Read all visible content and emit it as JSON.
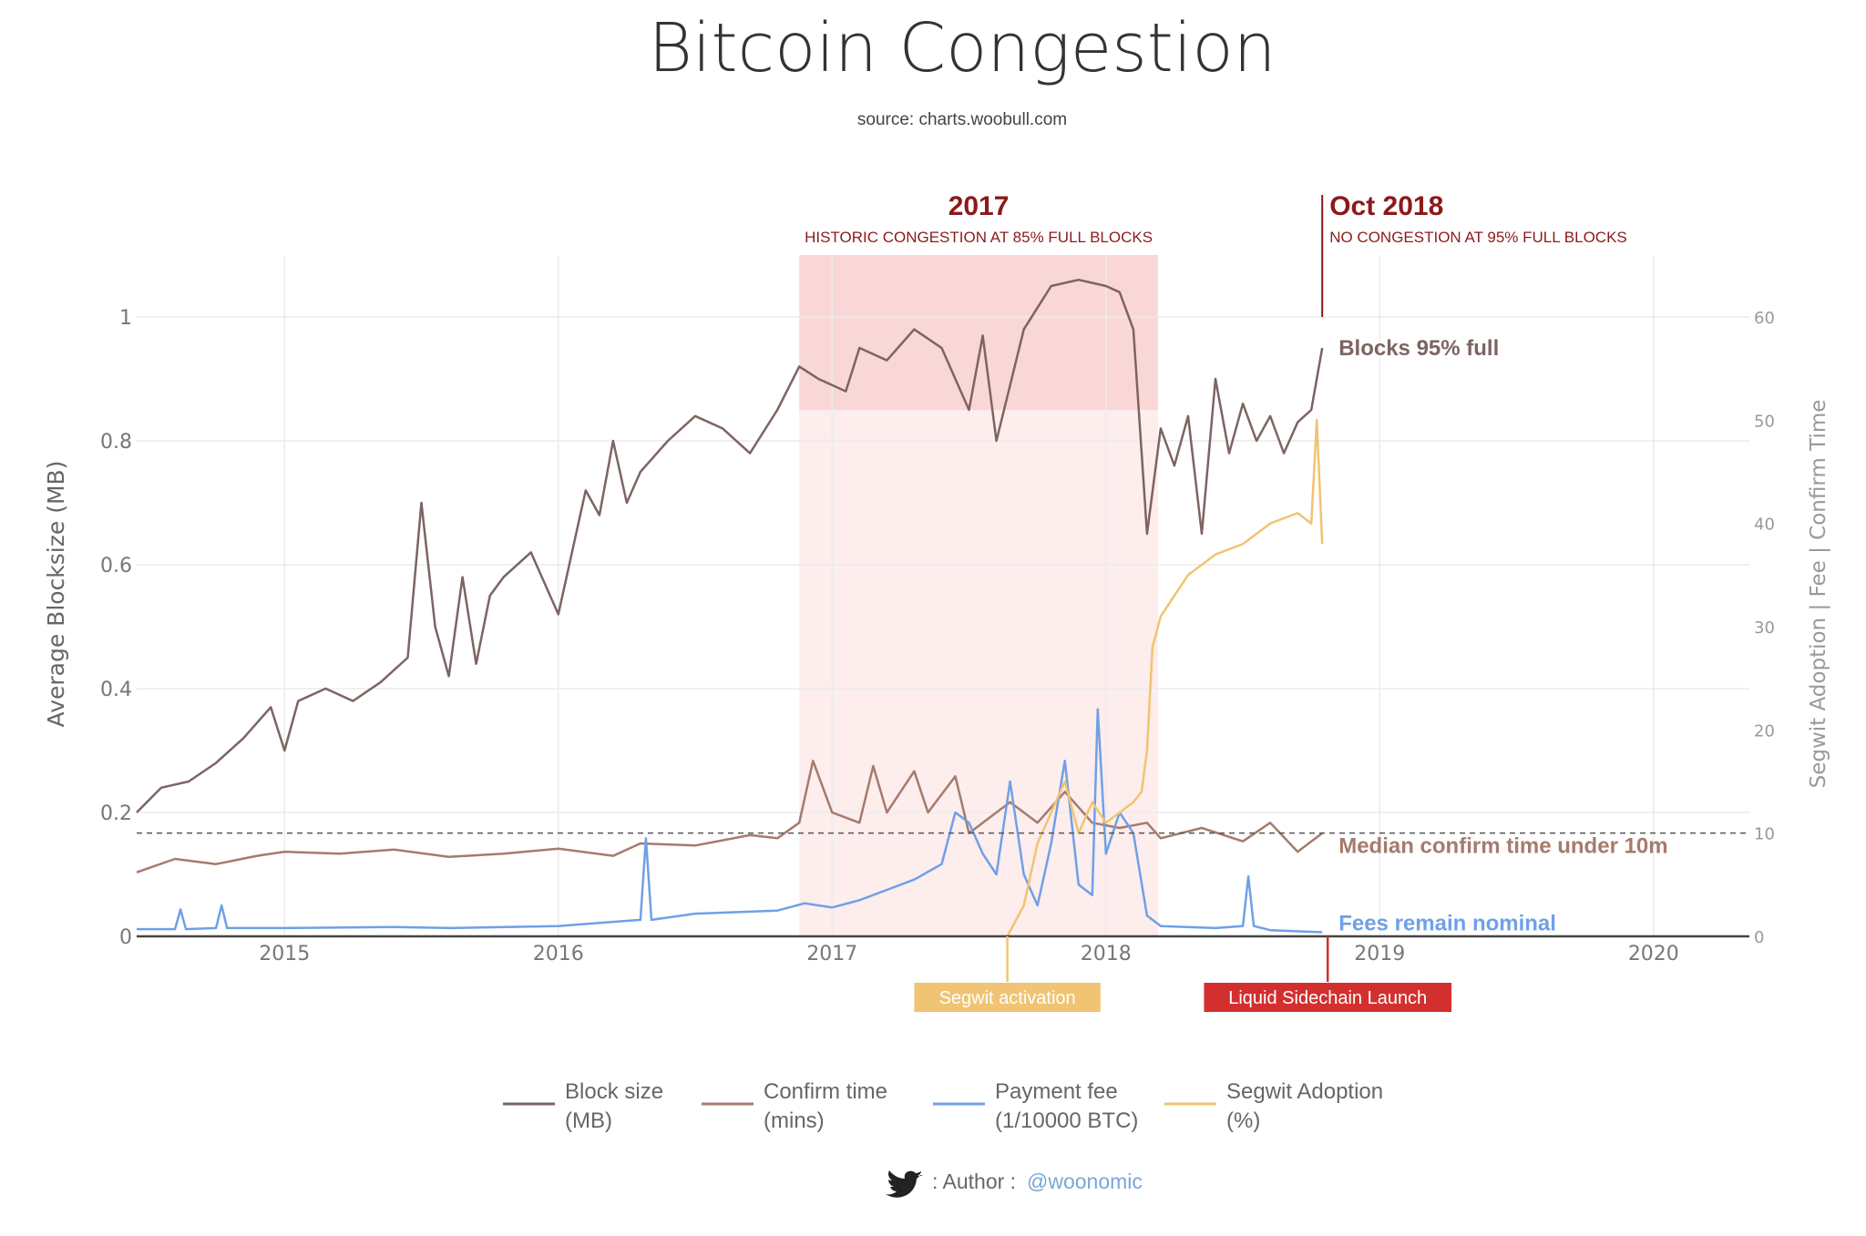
{
  "chart_data": {
    "type": "line",
    "title": "Bitcoin Congestion",
    "subtitle": "source: charts.woobull.com",
    "ylabel": "Average Blocksize (MB)",
    "y2label": "Segwit Adoption  |  Fee  |  Confirm Time",
    "xlim": [
      2014.46,
      2020.35
    ],
    "ylim": [
      0,
      1.1
    ],
    "y2lim": [
      0,
      66
    ],
    "x_ticks": [
      "2015",
      "2016",
      "2017",
      "2018",
      "2019",
      "2020"
    ],
    "y_ticks": [
      "0",
      "0.2",
      "0.4",
      "0.6",
      "0.8",
      "1"
    ],
    "y2_ticks": [
      "0",
      "10",
      "20",
      "30",
      "40",
      "50",
      "60"
    ],
    "grid": true,
    "legend_position": "bottom",
    "legend": [
      {
        "line1": "Block size",
        "line2": "(MB)",
        "color": "#7d6461"
      },
      {
        "line1": "Confirm time",
        "line2": "(mins)",
        "color": "#a57b6d"
      },
      {
        "line1": "Payment fee",
        "line2": "(1/10000 BTC)",
        "color": "#6fa0e8"
      },
      {
        "line1": "Segwit Adoption",
        "line2": "(%)",
        "color": "#f0c472"
      }
    ],
    "regions": [
      {
        "title": "2017",
        "subtitle": "HISTORIC CONGESTION AT 85% FULL BLOCKS",
        "x_start": 2016.88,
        "x_end": 2018.19,
        "y_top_band": 0.85,
        "color": "#f7c8c8"
      }
    ],
    "markers": [
      {
        "title": "Oct 2018",
        "subtitle": "NO CONGESTION AT 95% FULL BLOCKS",
        "x": 2018.79
      }
    ],
    "events": [
      {
        "label": "Segwit activation",
        "x": 2017.64,
        "color": "#f0c472"
      },
      {
        "label": "Liquid Sidechain Launch",
        "x": 2018.81,
        "color": "#d32f2f"
      }
    ],
    "reference_line": {
      "y2": 10,
      "style": "dashed"
    },
    "annotations": [
      {
        "text": "Blocks 95% full",
        "color": "#7d6461",
        "x": 2018.81,
        "y": 0.95
      },
      {
        "text": "Median confirm time under 10m",
        "color": "#a57b6d",
        "x": 2018.81,
        "y2": 8.8
      },
      {
        "text": "Fees remain nominal",
        "color": "#6fa0e8",
        "x": 2018.81,
        "y2": 1.3
      }
    ],
    "series": [
      {
        "name": "Block size (MB)",
        "axis": "y",
        "color": "#7d6461",
        "x": [
          2014.46,
          2014.55,
          2014.65,
          2014.75,
          2014.85,
          2014.95,
          2015.0,
          2015.05,
          2015.15,
          2015.25,
          2015.35,
          2015.45,
          2015.5,
          2015.55,
          2015.6,
          2015.65,
          2015.7,
          2015.75,
          2015.8,
          2015.9,
          2016.0,
          2016.1,
          2016.15,
          2016.2,
          2016.25,
          2016.3,
          2016.4,
          2016.5,
          2016.6,
          2016.7,
          2016.8,
          2016.88,
          2016.95,
          2017.05,
          2017.1,
          2017.2,
          2017.3,
          2017.4,
          2017.5,
          2017.55,
          2017.6,
          2017.7,
          2017.8,
          2017.9,
          2018.0,
          2018.05,
          2018.1,
          2018.15,
          2018.2,
          2018.25,
          2018.3,
          2018.35,
          2018.4,
          2018.45,
          2018.5,
          2018.55,
          2018.6,
          2018.65,
          2018.7,
          2018.75,
          2018.79
        ],
        "values": [
          0.2,
          0.24,
          0.25,
          0.28,
          0.32,
          0.37,
          0.3,
          0.38,
          0.4,
          0.38,
          0.41,
          0.45,
          0.7,
          0.5,
          0.42,
          0.58,
          0.44,
          0.55,
          0.58,
          0.62,
          0.52,
          0.72,
          0.68,
          0.8,
          0.7,
          0.75,
          0.8,
          0.84,
          0.82,
          0.78,
          0.85,
          0.92,
          0.9,
          0.88,
          0.95,
          0.93,
          0.98,
          0.95,
          0.85,
          0.97,
          0.8,
          0.98,
          1.05,
          1.06,
          1.05,
          1.04,
          0.98,
          0.65,
          0.82,
          0.76,
          0.84,
          0.65,
          0.9,
          0.78,
          0.86,
          0.8,
          0.84,
          0.78,
          0.83,
          0.85,
          0.95
        ]
      },
      {
        "name": "Confirm time (mins)",
        "axis": "y2",
        "color": "#a57b6d",
        "x": [
          2014.46,
          2014.6,
          2014.75,
          2014.9,
          2015.0,
          2015.2,
          2015.4,
          2015.6,
          2015.8,
          2016.0,
          2016.2,
          2016.3,
          2016.5,
          2016.7,
          2016.8,
          2016.88,
          2016.93,
          2017.0,
          2017.1,
          2017.15,
          2017.2,
          2017.3,
          2017.35,
          2017.45,
          2017.5,
          2017.6,
          2017.65,
          2017.75,
          2017.85,
          2017.95,
          2018.05,
          2018.15,
          2018.2,
          2018.35,
          2018.5,
          2018.6,
          2018.7,
          2018.79
        ],
        "values": [
          6.2,
          7.5,
          7.0,
          7.8,
          8.2,
          8.0,
          8.4,
          7.7,
          8.0,
          8.5,
          7.8,
          9.0,
          8.8,
          9.8,
          9.5,
          11,
          17,
          12,
          11,
          16.5,
          12,
          16,
          12,
          15.5,
          10,
          12,
          13,
          11,
          14,
          11,
          10.5,
          11,
          9.5,
          10.5,
          9.2,
          11,
          8.2,
          10
        ]
      },
      {
        "name": "Payment fee (1/10000 BTC)",
        "axis": "y2",
        "color": "#6fa0e8",
        "x": [
          2014.46,
          2014.6,
          2014.62,
          2014.64,
          2014.75,
          2014.77,
          2014.79,
          2015.0,
          2015.4,
          2015.6,
          2016.0,
          2016.2,
          2016.3,
          2016.32,
          2016.34,
          2016.5,
          2016.8,
          2016.9,
          2017.0,
          2017.1,
          2017.2,
          2017.3,
          2017.4,
          2017.45,
          2017.5,
          2017.55,
          2017.6,
          2017.65,
          2017.7,
          2017.75,
          2017.8,
          2017.85,
          2017.9,
          2017.95,
          2017.97,
          2018.0,
          2018.05,
          2018.1,
          2018.15,
          2018.2,
          2018.4,
          2018.5,
          2018.52,
          2018.54,
          2018.6,
          2018.79
        ],
        "values": [
          0.7,
          0.7,
          2.6,
          0.7,
          0.8,
          3.0,
          0.8,
          0.8,
          0.9,
          0.8,
          1.0,
          1.4,
          1.6,
          9.5,
          1.6,
          2.2,
          2.5,
          3.2,
          2.8,
          3.5,
          4.5,
          5.5,
          7.0,
          12,
          11,
          8,
          6,
          15,
          6,
          3,
          9,
          17,
          5,
          4,
          22,
          8,
          12,
          10,
          2,
          1.0,
          0.8,
          1.0,
          5.8,
          1.0,
          0.6,
          0.4
        ]
      },
      {
        "name": "Segwit Adoption (%)",
        "axis": "y2",
        "color": "#f0c472",
        "x": [
          2017.64,
          2017.7,
          2017.75,
          2017.8,
          2017.85,
          2017.9,
          2017.95,
          2018.0,
          2018.05,
          2018.1,
          2018.13,
          2018.15,
          2018.17,
          2018.2,
          2018.25,
          2018.3,
          2018.35,
          2018.4,
          2018.45,
          2018.5,
          2018.55,
          2018.6,
          2018.65,
          2018.7,
          2018.75,
          2018.77,
          2018.79
        ],
        "values": [
          0,
          3,
          9,
          12,
          15,
          10,
          13,
          11,
          12,
          13,
          14,
          18,
          28,
          31,
          33,
          35,
          36,
          37,
          37.5,
          38,
          39,
          40,
          40.5,
          41,
          40,
          50,
          38
        ]
      }
    ]
  },
  "footer": {
    "author_label": ": Author :",
    "handle": "@woonomic",
    "icon": "twitter-bird-icon",
    "handle_color": "#7aa6d6"
  }
}
